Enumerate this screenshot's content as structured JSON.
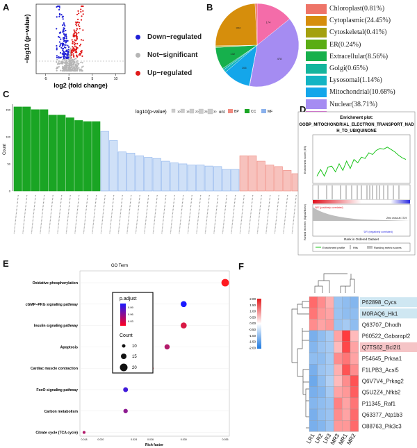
{
  "panels": {
    "a": "A",
    "b": "B",
    "c": "C",
    "d": "D",
    "e": "E",
    "f": "F"
  },
  "volcano": {
    "xlabel": "log2 (fold change)",
    "ylabel": "−log10 (p−value)",
    "xticks": [
      "-5",
      "0",
      "5",
      "10"
    ],
    "legend": [
      {
        "label": "Down−regulated",
        "color": "#1f1fd6"
      },
      {
        "label": "Not−significant",
        "color": "#b5b5b5"
      },
      {
        "label": "Up−regulated",
        "color": "#e01a1a"
      }
    ]
  },
  "pie": {
    "legend": [
      {
        "label": "Chloroplast(0.81%)",
        "color": "#ee7468"
      },
      {
        "label": "Cytoplasmic(24.45%)",
        "color": "#d68e0c"
      },
      {
        "label": "Cytoskeletal(0.41%)",
        "color": "#a4a00e"
      },
      {
        "label": "ER(0.24%)",
        "color": "#5aad14"
      },
      {
        "label": "Extracellular(8.56%)",
        "color": "#16b04c"
      },
      {
        "label": "Golgi(0.65%)",
        "color": "#14b59d"
      },
      {
        "label": "Lysosomal(1.14%)",
        "color": "#13b4c4"
      },
      {
        "label": "Mitochondrial(10.68%)",
        "color": "#14a6ea"
      },
      {
        "label": "Nuclear(38.71%)",
        "color": "#a58cf2"
      },
      {
        "label": "Peroxisomal(0.16%)",
        "color": "#e86ee4"
      },
      {
        "label": "PlasmaMembrane(14.18%)",
        "color": "#f46ca9"
      }
    ],
    "slice_labels": [
      "304",
      "478",
      "132",
      "106",
      "174"
    ]
  },
  "go": {
    "axis_title": "log10(p-value)",
    "size_legend": [
      "10",
      "15",
      "20",
      "25",
      "30"
    ],
    "ont_label": "ont",
    "ont": [
      {
        "label": "BP",
        "color": "#f08a80"
      },
      {
        "label": "CC",
        "color": "#1aa524"
      },
      {
        "label": "MF",
        "color": "#8ab1ec"
      }
    ],
    "ylabel": "Count",
    "yticks": [
      "150",
      "100",
      "50",
      "0"
    ]
  },
  "gsea": {
    "title_line1": "Enrichment plot:",
    "title_line2": "GOBP_MITOCHONDRIAL_ELECTRON_TRANSPORT_NAD",
    "title_line3": "H_TO_UBIQUINONE",
    "ylabel_top": "Enrichment score (ES)",
    "ylabel_bottom": "Ranked list metric (Signal2Noise)",
    "xlabel": "Rank in Ordered Dataset",
    "pos_label": "'NR' (positively correlated)",
    "neg_label": "'DR' (negatively correlated)",
    "zero_label": "Zero cross at 1719",
    "legend": [
      "Enrichment profile",
      "Hits",
      "Ranking metric scores"
    ]
  },
  "kegg": {
    "title": "GO Term",
    "xlabel": "Rich factor",
    "xticks": [
      "0.018",
      "0.020",
      "0.024",
      "0.026",
      "0.030",
      "0.035"
    ],
    "legend_title1": "p.adjust",
    "padj_ticks": [
      "0.09",
      "0.06",
      "0.03"
    ],
    "legend_title2": "Count",
    "count_sizes": [
      "10",
      "15",
      "20"
    ]
  },
  "heatmap": {
    "colorbar_ticks": [
      "2.00",
      "1.50",
      "1.00",
      "0.50",
      "0.00",
      "-0.50",
      "-1.00",
      "-1.50",
      "-2.00"
    ],
    "columns": [
      "LR1",
      "LR2",
      "LR3",
      "MR3",
      "MR1",
      "MR2"
    ],
    "rows": [
      "P62898_Cycs",
      "M0RAQ6_Hk1",
      "Q63707_Dhodh",
      "P60522_Gabarapl2",
      "Q7TS62_Bcl2l1",
      "P54645_Prkaa1",
      "F1LPB3_Acsl5",
      "Q6V7V4_Prkag2",
      "Q5U2Z4_Nfkb2",
      "P11345_Raf1",
      "Q63377_Atp1b3",
      "O88763_Pik3c3"
    ]
  },
  "chart_data": [
    {
      "type": "scatter",
      "title": "",
      "xlabel": "log2 (fold change)",
      "ylabel": "−log10 (p−value)",
      "xlim": [
        -7,
        12
      ],
      "series": [
        {
          "name": "Down−regulated"
        },
        {
          "name": "Not−significant"
        },
        {
          "name": "Up−regulated"
        }
      ]
    },
    {
      "type": "pie",
      "categories": [
        "Chloroplast",
        "Cytoplasmic",
        "Cytoskeletal",
        "ER",
        "Extracellular",
        "Golgi",
        "Lysosomal",
        "Mitochondrial",
        "Nuclear",
        "Peroxisomal",
        "PlasmaMembrane"
      ],
      "values": [
        0.81,
        24.45,
        0.41,
        0.24,
        8.56,
        0.65,
        1.14,
        10.68,
        38.71,
        0.16,
        14.18
      ]
    },
    {
      "type": "bar",
      "ylabel": "Count",
      "ylim": [
        0,
        160
      ],
      "series": [
        {
          "name": "CC",
          "values": [
            155,
            155,
            150,
            150,
            140,
            140,
            135,
            130,
            128,
            128
          ]
        },
        {
          "name": "MF",
          "values": [
            110,
            93,
            72,
            70,
            65,
            62,
            60,
            55,
            52,
            50,
            48,
            48,
            46,
            45,
            40,
            40
          ]
        },
        {
          "name": "BP",
          "values": [
            65,
            65,
            55,
            48,
            45,
            38,
            32,
            26,
            22,
            20,
            20
          ]
        }
      ]
    },
    {
      "type": "scatter",
      "title": "GO Term",
      "xlabel": "Rich factor",
      "categories": [
        "Oxidative phosphorylation",
        "cGMP−PKG signaling pathway",
        "Insulin signaling pathway",
        "Apoptosis",
        "Cardiac muscle contraction",
        "FoxO signaling pathway",
        "Carbon metabolism",
        "Citrate cycle (TCA cycle)"
      ],
      "values": [
        0.035,
        0.03,
        0.03,
        0.028,
        0.026,
        0.023,
        0.023,
        0.018
      ],
      "counts": [
        20,
        16,
        16,
        14,
        16,
        13,
        12,
        8
      ],
      "padj": [
        0.03,
        0.09,
        0.04,
        0.05,
        0.03,
        0.08,
        0.06,
        0.05
      ]
    },
    {
      "type": "heatmap",
      "rows": [
        "P62898_Cycs",
        "M0RAQ6_Hk1",
        "Q63707_Dhodh",
        "P60522_Gabarapl2",
        "Q7TS62_Bcl2l1",
        "P54645_Prkaa1",
        "F1LPB3_Acsl5",
        "Q6V7V4_Prkag2",
        "Q5U2Z4_Nfkb2",
        "P11345_Raf1",
        "Q63377_Atp1b3",
        "O88763_Pik3c3"
      ],
      "columns": [
        "LR1",
        "LR2",
        "LR3",
        "MR3",
        "MR1",
        "MR2"
      ],
      "values": [
        [
          1.3,
          1.0,
          0.7,
          -0.9,
          -1.0,
          -1.1
        ],
        [
          1.2,
          0.9,
          0.8,
          -0.9,
          -1.0,
          -1.0
        ],
        [
          1.0,
          0.8,
          0.9,
          -0.9,
          -0.8,
          -1.0
        ],
        [
          -1.2,
          -1.0,
          -0.8,
          0.8,
          1.7,
          0.6
        ],
        [
          -1.1,
          -0.9,
          -0.8,
          0.6,
          1.6,
          0.8
        ],
        [
          -1.0,
          -1.0,
          -0.8,
          1.0,
          1.2,
          0.8
        ],
        [
          -1.2,
          -0.9,
          -0.8,
          0.7,
          1.5,
          1.0
        ],
        [
          -1.3,
          -1.0,
          -0.7,
          0.6,
          1.0,
          1.5
        ],
        [
          -1.2,
          -1.1,
          -0.8,
          0.8,
          0.9,
          1.4
        ],
        [
          -1.1,
          -1.0,
          -0.9,
          1.1,
          0.8,
          1.2
        ],
        [
          -1.2,
          -1.0,
          -0.9,
          1.0,
          0.8,
          1.3
        ],
        [
          -1.2,
          -1.1,
          -0.9,
          0.9,
          0.9,
          1.3
        ]
      ],
      "range": [
        -2,
        2
      ]
    }
  ]
}
